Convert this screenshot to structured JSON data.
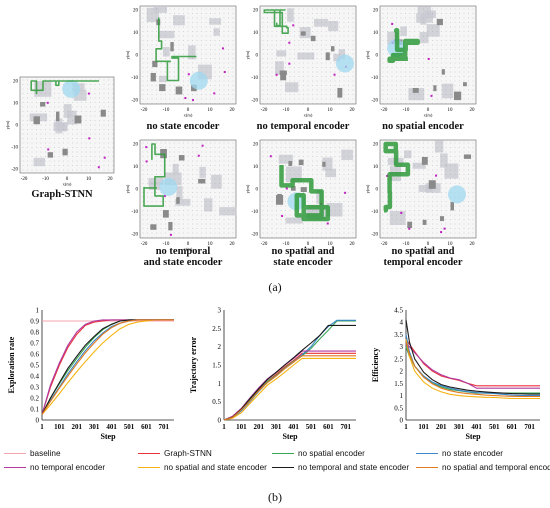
{
  "maps": [
    {
      "id": "graph-stnn",
      "label": [
        "Graph-STNN"
      ]
    },
    {
      "id": "no-state",
      "label": [
        "no state encoder"
      ]
    },
    {
      "id": "no-temporal",
      "label": [
        "no temporal encoder"
      ]
    },
    {
      "id": "no-spatial",
      "label": [
        "no spatial encoder"
      ]
    },
    {
      "id": "no-temporal-state",
      "label": [
        "no temporal",
        "and state encoder"
      ]
    },
    {
      "id": "no-spatial-state",
      "label": [
        "no spatial and",
        "state encoder"
      ]
    },
    {
      "id": "no-spatial-temporal",
      "label": [
        "no spatial and",
        "temporal encoder"
      ]
    }
  ],
  "map_axis": {
    "x_label": "x(m)",
    "y_label": "y(m)",
    "ticks": [
      "-20",
      "-10",
      "0",
      "10",
      "20"
    ]
  },
  "panel_labels": {
    "a": "(a)",
    "b": "(b)"
  },
  "colors": {
    "baseline": "#f4a6b0",
    "graph_stnn": "#e8323c",
    "no_spatial": "#3aa655",
    "no_state": "#3a86c8",
    "no_temporal": "#b03aa0",
    "no_spatial_state": "#f5b414",
    "no_temporal_state": "#1a1a1a",
    "no_spatial_temporal": "#e07a20",
    "path": "#2e9a3a",
    "fov": "#9fd8f0",
    "obstacle": "#8a8a8a",
    "target": "#c020c0"
  },
  "legend": [
    {
      "name": "baseline",
      "color": "#f4a6b0"
    },
    {
      "name": "Graph-STNN",
      "color": "#e8323c"
    },
    {
      "name": "no spatial encoder",
      "color": "#3aa655"
    },
    {
      "name": "no state encoder",
      "color": "#3a86c8"
    },
    {
      "name": "no temporal encoder",
      "color": "#b03aa0"
    },
    {
      "name": "no spatial and state encoder",
      "color": "#f5b414"
    },
    {
      "name": "no temporal and state encoder",
      "color": "#1a1a1a"
    },
    {
      "name": "no spatial and temporal encoder",
      "color": "#e07a20"
    }
  ],
  "chart_data": [
    {
      "type": "line",
      "xlabel": "Step",
      "ylabel": "Exploration rate",
      "xticks": [
        "1",
        "101",
        "201",
        "301",
        "401",
        "501",
        "601",
        "701"
      ],
      "ylim": [
        0,
        1
      ],
      "yticks": [
        "0",
        "0.1",
        "0.2",
        "0.3",
        "0.4",
        "0.5",
        "0.6",
        "0.7",
        "0.8",
        "0.9",
        "1"
      ],
      "x": [
        1,
        50,
        101,
        150,
        201,
        250,
        301,
        350,
        401,
        450,
        501,
        550,
        601,
        650,
        701,
        760
      ],
      "series": [
        {
          "name": "baseline",
          "values": [
            0.9,
            0.9,
            0.9,
            0.9,
            0.9,
            0.9,
            0.9,
            0.9,
            0.9,
            0.9,
            0.9,
            0.9,
            0.9,
            0.9,
            0.9,
            0.9
          ]
        },
        {
          "name": "Graph-STNN",
          "values": [
            0.05,
            0.3,
            0.5,
            0.66,
            0.78,
            0.86,
            0.89,
            0.9,
            0.91,
            0.91,
            0.91,
            0.91,
            0.91,
            0.91,
            0.91,
            0.91
          ]
        },
        {
          "name": "no spatial encoder",
          "values": [
            0.05,
            0.2,
            0.33,
            0.45,
            0.56,
            0.66,
            0.75,
            0.82,
            0.87,
            0.9,
            0.91,
            0.91,
            0.91,
            0.91,
            0.91,
            0.91
          ]
        },
        {
          "name": "no state encoder",
          "values": [
            0.05,
            0.18,
            0.3,
            0.42,
            0.53,
            0.63,
            0.72,
            0.79,
            0.85,
            0.88,
            0.9,
            0.91,
            0.91,
            0.91,
            0.91,
            0.91
          ]
        },
        {
          "name": "no temporal encoder",
          "values": [
            0.05,
            0.32,
            0.52,
            0.68,
            0.8,
            0.87,
            0.9,
            0.91,
            0.91,
            0.91,
            0.91,
            0.91,
            0.91,
            0.91,
            0.91,
            0.91
          ]
        },
        {
          "name": "no spatial and state encoder",
          "values": [
            0.05,
            0.14,
            0.24,
            0.34,
            0.44,
            0.53,
            0.62,
            0.7,
            0.77,
            0.83,
            0.87,
            0.89,
            0.9,
            0.91,
            0.91,
            0.91
          ]
        },
        {
          "name": "no temporal and state encoder",
          "values": [
            0.05,
            0.2,
            0.34,
            0.47,
            0.58,
            0.68,
            0.76,
            0.83,
            0.87,
            0.9,
            0.91,
            0.91,
            0.91,
            0.91,
            0.91,
            0.91
          ]
        },
        {
          "name": "no spatial and temporal encoder",
          "values": [
            0.05,
            0.17,
            0.29,
            0.4,
            0.51,
            0.61,
            0.7,
            0.78,
            0.84,
            0.88,
            0.9,
            0.91,
            0.91,
            0.91,
            0.91,
            0.91
          ]
        }
      ]
    },
    {
      "type": "line",
      "xlabel": "Step",
      "ylabel": "Trajectory error",
      "xticks": [
        "1",
        "101",
        "201",
        "301",
        "401",
        "501",
        "601",
        "701"
      ],
      "ylim": [
        0,
        3
      ],
      "yticks": [
        "0",
        "0.5",
        "1",
        "1.5",
        "2",
        "2.5",
        "3"
      ],
      "x": [
        1,
        50,
        101,
        150,
        201,
        250,
        301,
        350,
        401,
        450,
        501,
        550,
        601,
        650,
        701,
        760
      ],
      "series": [
        {
          "name": "Graph-STNN",
          "values": [
            0,
            0.08,
            0.3,
            0.55,
            0.82,
            1.05,
            1.25,
            1.45,
            1.62,
            1.82,
            1.82,
            1.82,
            1.82,
            1.82,
            1.82,
            1.82
          ]
        },
        {
          "name": "no spatial encoder",
          "values": [
            0,
            0.08,
            0.3,
            0.55,
            0.8,
            1.05,
            1.22,
            1.42,
            1.6,
            1.75,
            1.95,
            2.2,
            2.45,
            2.7,
            2.7,
            2.7
          ]
        },
        {
          "name": "no state encoder",
          "values": [
            0,
            0.06,
            0.25,
            0.5,
            0.78,
            1.02,
            1.2,
            1.4,
            1.58,
            1.78,
            2.0,
            2.3,
            2.55,
            2.72,
            2.72,
            2.72
          ]
        },
        {
          "name": "no temporal encoder",
          "values": [
            0,
            0.1,
            0.32,
            0.6,
            0.88,
            1.12,
            1.3,
            1.5,
            1.68,
            1.88,
            1.88,
            1.88,
            1.88,
            1.88,
            1.88,
            1.88
          ]
        },
        {
          "name": "no spatial and state encoder",
          "values": [
            0,
            0.05,
            0.2,
            0.45,
            0.7,
            0.95,
            1.12,
            1.3,
            1.5,
            1.68,
            1.68,
            1.68,
            1.68,
            1.68,
            1.68,
            1.68
          ]
        },
        {
          "name": "no temporal and state encoder",
          "values": [
            0,
            0.08,
            0.3,
            0.58,
            0.85,
            1.1,
            1.3,
            1.5,
            1.7,
            1.9,
            2.1,
            2.3,
            2.58,
            2.58,
            2.58,
            2.58
          ]
        },
        {
          "name": "no spatial and temporal encoder",
          "values": [
            0,
            0.07,
            0.28,
            0.52,
            0.8,
            1.02,
            1.2,
            1.4,
            1.58,
            1.75,
            1.75,
            1.75,
            1.75,
            1.75,
            1.75,
            1.75
          ]
        }
      ]
    },
    {
      "type": "line",
      "xlabel": "Step",
      "ylabel": "Efficiency",
      "xticks": [
        "1",
        "101",
        "201",
        "301",
        "401",
        "501",
        "601",
        "701"
      ],
      "ylim": [
        0,
        4.5
      ],
      "yticks": [
        "0",
        "0.5",
        "1",
        "1.5",
        "2",
        "2.5",
        "3",
        "3.5",
        "4",
        "4.5"
      ],
      "x": [
        1,
        20,
        50,
        101,
        150,
        201,
        250,
        301,
        350,
        401,
        450,
        501,
        550,
        601,
        650,
        701,
        760
      ],
      "series": [
        {
          "name": "Graph-STNN",
          "values": [
            3.3,
            3.1,
            2.8,
            2.3,
            2.0,
            1.8,
            1.7,
            1.62,
            1.5,
            1.4,
            1.4,
            1.4,
            1.4,
            1.4,
            1.4,
            1.4,
            1.4
          ]
        },
        {
          "name": "no spatial encoder",
          "values": [
            3.0,
            2.6,
            2.2,
            1.75,
            1.5,
            1.35,
            1.25,
            1.2,
            1.15,
            1.1,
            1.1,
            1.1,
            1.1,
            1.1,
            1.1,
            1.1,
            1.1
          ]
        },
        {
          "name": "no state encoder",
          "values": [
            3.5,
            2.8,
            2.2,
            1.8,
            1.55,
            1.4,
            1.3,
            1.22,
            1.16,
            1.12,
            1.1,
            1.08,
            1.05,
            1.02,
            1.0,
            1.0,
            1.0
          ]
        },
        {
          "name": "no temporal encoder",
          "values": [
            3.1,
            3.0,
            2.75,
            2.35,
            2.05,
            1.85,
            1.72,
            1.65,
            1.5,
            1.3,
            1.3,
            1.3,
            1.3,
            1.3,
            1.3,
            1.3,
            1.3
          ]
        },
        {
          "name": "no spatial and state encoder",
          "values": [
            3.3,
            2.6,
            2.0,
            1.55,
            1.3,
            1.15,
            1.05,
            1.0,
            0.97,
            0.95,
            0.93,
            0.92,
            0.9,
            0.88,
            0.88,
            0.88,
            0.88
          ]
        },
        {
          "name": "no temporal and state encoder",
          "values": [
            4.1,
            3.2,
            2.5,
            1.95,
            1.65,
            1.45,
            1.35,
            1.28,
            1.22,
            1.18,
            1.15,
            1.12,
            1.1,
            1.08,
            1.07,
            1.06,
            1.06
          ]
        },
        {
          "name": "no spatial and temporal encoder",
          "values": [
            3.2,
            2.7,
            2.2,
            1.75,
            1.48,
            1.3,
            1.2,
            1.12,
            1.08,
            1.05,
            1.02,
            1.0,
            0.98,
            0.97,
            0.96,
            0.96,
            0.96
          ]
        }
      ]
    }
  ]
}
